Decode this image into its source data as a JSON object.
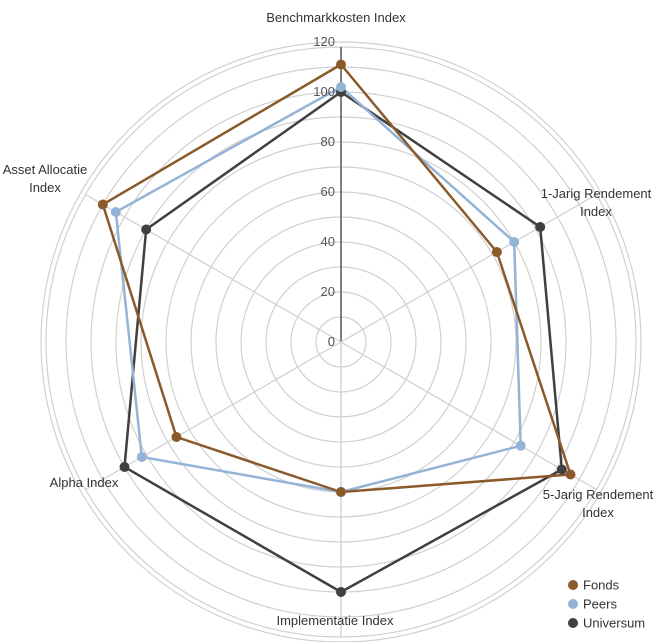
{
  "chart_data": {
    "type": "radar",
    "axes": [
      "Benchmarkkosten Index",
      "1-Jarig Rendement Index",
      "5-Jarig Rendement Index",
      "Implementatie Index",
      "Alpha Index",
      "Asset Allocatie Index"
    ],
    "axis_labels": [
      [
        "Benchmarkkosten Index"
      ],
      [
        "1-Jarig Rendement",
        "Index"
      ],
      [
        "5-Jarig Rendement",
        "Index"
      ],
      [
        "Implementatie Index"
      ],
      [
        "Alpha Index"
      ],
      [
        "Asset Allocatie",
        "Index"
      ]
    ],
    "radial_ticks": [
      0,
      20,
      40,
      60,
      80,
      100,
      120
    ],
    "rlim": [
      0,
      120
    ],
    "series": [
      {
        "name": "Fonds",
        "color": "#8B5A2B",
        "values": [
          111,
          72,
          106,
          60,
          76,
          110
        ]
      },
      {
        "name": "Peers",
        "color": "#95B3D7",
        "values": [
          102,
          80,
          83,
          60,
          92,
          104
        ]
      },
      {
        "name": "Universum",
        "color": "#404040",
        "values": [
          100,
          92,
          102,
          100,
          100,
          90
        ]
      }
    ],
    "legend_position": "bottom-right",
    "grid": true
  }
}
